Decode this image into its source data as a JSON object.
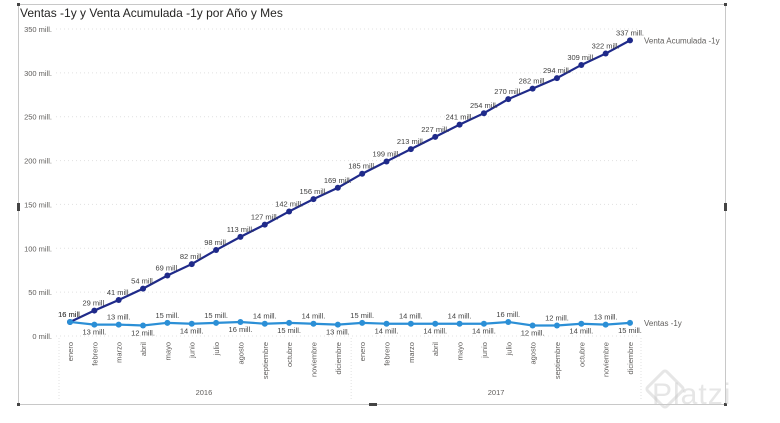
{
  "title": "Ventas -1y y Venta Acumulada -1y por Año y Mes",
  "watermark": "Platzi",
  "colors": {
    "accumulated": "#1f2a8a",
    "sales": "#2b8fd6",
    "grid": "#e1e1e1"
  },
  "chart_data": {
    "type": "line",
    "title": "Ventas -1y y Venta Acumulada -1y por Año y Mes",
    "xlabel": "",
    "ylabel": "",
    "ylim": [
      0,
      350
    ],
    "y_ticks": [
      0,
      50,
      100,
      150,
      200,
      250,
      300,
      350
    ],
    "y_tick_labels": [
      "0 mill.",
      "50 mill.",
      "100 mill.",
      "150 mill.",
      "200 mill.",
      "250 mill.",
      "300 mill.",
      "350 mill."
    ],
    "categories": [
      "enero",
      "febrero",
      "marzo",
      "abril",
      "mayo",
      "junio",
      "julio",
      "agosto",
      "septiembre",
      "octubre",
      "noviembre",
      "diciembre",
      "enero",
      "febrero",
      "marzo",
      "abril",
      "mayo",
      "junio",
      "julio",
      "agosto",
      "septiembre",
      "octubre",
      "noviembre",
      "diciembre"
    ],
    "groups": [
      {
        "label": "2016",
        "start": 0,
        "end": 11
      },
      {
        "label": "2017",
        "start": 12,
        "end": 23
      }
    ],
    "series": [
      {
        "name": "Venta Acumulada -1y",
        "values": [
          16,
          29,
          41,
          54,
          69,
          82,
          98,
          113,
          127,
          142,
          156,
          169,
          185,
          199,
          213,
          227,
          241,
          254,
          270,
          282,
          294,
          309,
          322,
          337
        ],
        "labels": [
          "16 mill.",
          "29 mill.",
          "41 mill.",
          "54 mill.",
          "69 mill.",
          "82 mill.",
          "98 mill.",
          "113 mill.",
          "127 mill.",
          "142 mill.",
          "156 mill.",
          "169 mill.",
          "185 mill.",
          "199 mill.",
          "213 mill.",
          "227 mill.",
          "241 mill.",
          "254 mill.",
          "270 mill.",
          "282 mill.",
          "294 mill.",
          "309 mill.",
          "322 mill.",
          "337 mill."
        ]
      },
      {
        "name": "Ventas -1y",
        "values": [
          16,
          13,
          13,
          12,
          15,
          14,
          15,
          16,
          14,
          15,
          14,
          13,
          15,
          14,
          14,
          14,
          14,
          14,
          16,
          12,
          12,
          14,
          13,
          15
        ],
        "labels": [
          "16 mill.",
          "13 mill.",
          "13 mill.",
          "12 mill.",
          "15 mill.",
          "14 mill.",
          "15 mill.",
          "16 mill.",
          "14 mill.",
          "15 mill.",
          "14 mill.",
          "13 mill.",
          "15 mill.",
          "14 mill.",
          "14 mill.",
          "14 mill.",
          "14 mill.",
          "14 mill.",
          "16 mill.",
          "12 mill.",
          "12 mill.",
          "14 mill.",
          "13 mill.",
          "15 mill."
        ]
      }
    ],
    "legend": "end-of-line labels"
  }
}
